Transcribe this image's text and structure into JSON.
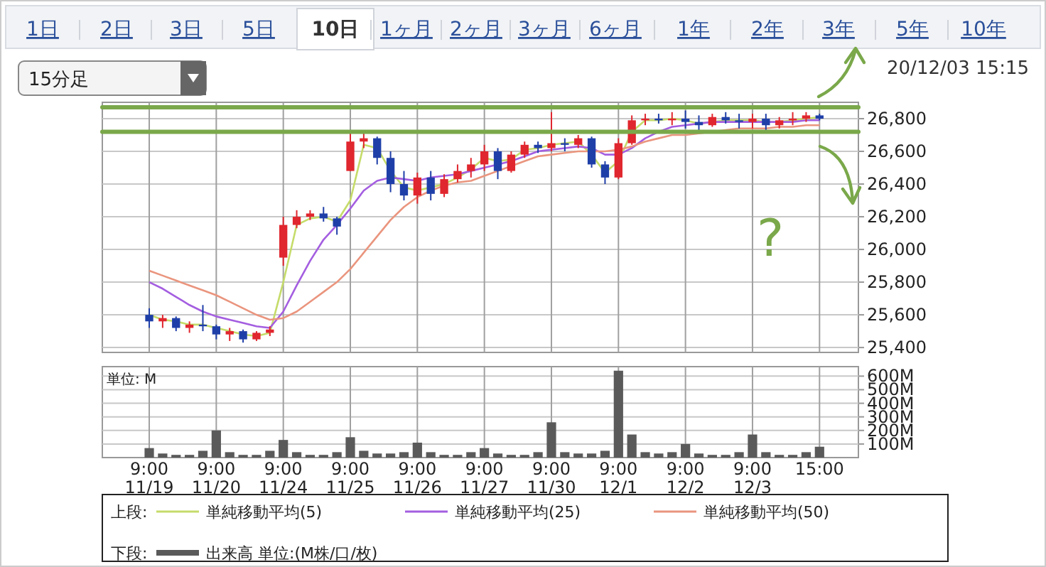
{
  "chart_data": [
    {
      "type": "candlestick",
      "categories": [
        null,
        null,
        null,
        null,
        null,
        null,
        null,
        null,
        null,
        null,
        null,
        null,
        null,
        null,
        null,
        null,
        null,
        null,
        null,
        null,
        null,
        null,
        null,
        null,
        null,
        null,
        null,
        null,
        null,
        null,
        null,
        null,
        null,
        null,
        null,
        null,
        null,
        null,
        null,
        null,
        null,
        null,
        null,
        null,
        null,
        null,
        null,
        null,
        null,
        null,
        null
      ],
      "ohlc": [
        [
          25600,
          25640,
          25520,
          25560
        ],
        [
          25560,
          25600,
          25520,
          25580
        ],
        [
          25580,
          25590,
          25500,
          25520
        ],
        [
          25520,
          25560,
          25490,
          25540
        ],
        [
          25540,
          25660,
          25500,
          25530
        ],
        [
          25530,
          25540,
          25450,
          25480
        ],
        [
          25480,
          25520,
          25440,
          25500
        ],
        [
          25500,
          25510,
          25430,
          25450
        ],
        [
          25450,
          25500,
          25440,
          25490
        ],
        [
          25490,
          25530,
          25470,
          25510
        ],
        [
          25950,
          26200,
          25900,
          26150
        ],
        [
          26150,
          26240,
          26130,
          26200
        ],
        [
          26200,
          26240,
          26180,
          26220
        ],
        [
          26220,
          26260,
          26170,
          26190
        ],
        [
          26190,
          26200,
          26090,
          26140
        ],
        [
          26480,
          26710,
          26480,
          26660
        ],
        [
          26660,
          26720,
          26620,
          26680
        ],
        [
          26680,
          26690,
          26520,
          26560
        ],
        [
          26560,
          26600,
          26350,
          26400
        ],
        [
          26400,
          26480,
          26300,
          26330
        ],
        [
          26330,
          26470,
          26280,
          26440
        ],
        [
          26440,
          26480,
          26300,
          26340
        ],
        [
          26340,
          26460,
          26320,
          26430
        ],
        [
          26430,
          26520,
          26410,
          26480
        ],
        [
          26480,
          26560,
          26440,
          26520
        ],
        [
          26520,
          26640,
          26480,
          26600
        ],
        [
          26600,
          26620,
          26430,
          26480
        ],
        [
          26480,
          26600,
          26470,
          26580
        ],
        [
          26580,
          26660,
          26560,
          26640
        ],
        [
          26640,
          26660,
          26590,
          26620
        ],
        [
          26620,
          26840,
          26600,
          26650
        ],
        [
          26650,
          26680,
          26600,
          26640
        ],
        [
          26640,
          26700,
          26620,
          26680
        ],
        [
          26680,
          26690,
          26500,
          26520
        ],
        [
          26520,
          26540,
          26400,
          26440
        ],
        [
          26440,
          26680,
          26430,
          26650
        ],
        [
          26650,
          26820,
          26640,
          26790
        ],
        [
          26790,
          26830,
          26760,
          26800
        ],
        [
          26800,
          26830,
          26770,
          26790
        ],
        [
          26790,
          26840,
          26760,
          26800
        ],
        [
          26800,
          26850,
          26740,
          26780
        ],
        [
          26780,
          26820,
          26720,
          26760
        ],
        [
          26760,
          26830,
          26750,
          26810
        ],
        [
          26810,
          26840,
          26770,
          26790
        ],
        [
          26790,
          26830,
          26740,
          26780
        ],
        [
          26780,
          26830,
          26740,
          26800
        ],
        [
          26800,
          26830,
          26730,
          26760
        ],
        [
          26760,
          26810,
          26740,
          26790
        ],
        [
          26790,
          26840,
          26760,
          26800
        ],
        [
          26800,
          26840,
          26780,
          26820
        ],
        [
          26820,
          26830,
          26790,
          26800
        ]
      ],
      "colors": [
        "#1f3fa8",
        "#e0262e",
        "#1f3fa8",
        "#e0262e",
        "#1f3fa8",
        "#1f3fa8",
        "#e0262e",
        "#1f3fa8",
        "#e0262e",
        "#e0262e",
        "#e0262e",
        "#e0262e",
        "#e0262e",
        "#1f3fa8",
        "#1f3fa8",
        "#e0262e",
        "#e0262e",
        "#1f3fa8",
        "#1f3fa8",
        "#1f3fa8",
        "#e0262e",
        "#1f3fa8",
        "#e0262e",
        "#e0262e",
        "#e0262e",
        "#e0262e",
        "#1f3fa8",
        "#e0262e",
        "#e0262e",
        "#1f3fa8",
        "#e0262e",
        "#1f3fa8",
        "#e0262e",
        "#1f3fa8",
        "#1f3fa8",
        "#e0262e",
        "#e0262e",
        "#e0262e",
        "#1f3fa8",
        "#e0262e",
        "#1f3fa8",
        "#1f3fa8",
        "#e0262e",
        "#1f3fa8",
        "#1f3fa8",
        "#e0262e",
        "#1f3fa8",
        "#e0262e",
        "#e0262e",
        "#e0262e",
        "#1f3fa8"
      ],
      "series": [
        {
          "type": "line",
          "name": "単純移動平均(5)",
          "color": "#c5dc6a",
          "values": [
            25600,
            25570,
            25560,
            25540,
            25540,
            25520,
            25500,
            25480,
            25470,
            25490,
            25800,
            26150,
            26190,
            26200,
            26170,
            26300,
            26640,
            26620,
            26480,
            26380,
            26360,
            26380,
            26400,
            26440,
            26490,
            26560,
            26540,
            26550,
            26610,
            26620,
            26640,
            26650,
            26660,
            26580,
            26470,
            26540,
            26720,
            26790,
            26790,
            26800,
            26790,
            26770,
            26780,
            26790,
            26790,
            26790,
            26780,
            26780,
            26790,
            26800,
            26810
          ]
        },
        {
          "type": "line",
          "name": "単純移動平均(25)",
          "color": "#a45ee0",
          "values": [
            25800,
            25760,
            25710,
            25660,
            25620,
            25590,
            25570,
            25550,
            25530,
            25520,
            25620,
            25780,
            25930,
            26060,
            26150,
            26250,
            26360,
            26420,
            26440,
            26430,
            26420,
            26440,
            26450,
            26460,
            26480,
            26500,
            26520,
            26540,
            26570,
            26600,
            26610,
            26620,
            26630,
            26620,
            26580,
            26580,
            26620,
            26680,
            26720,
            26750,
            26760,
            26770,
            26780,
            26780,
            26780,
            26780,
            26780,
            26780,
            26780,
            26790,
            26790
          ]
        },
        {
          "type": "line",
          "name": "単純移動平均(50)",
          "color": "#ea957e",
          "values": [
            25870,
            25840,
            25810,
            25780,
            25750,
            25720,
            25680,
            25640,
            25600,
            25570,
            25580,
            25620,
            25680,
            25740,
            25800,
            25880,
            25980,
            26080,
            26180,
            26260,
            26320,
            26360,
            26390,
            26410,
            26420,
            26450,
            26480,
            26510,
            26540,
            26570,
            26580,
            26590,
            26600,
            26600,
            26600,
            26610,
            26630,
            26660,
            26680,
            26700,
            26700,
            26710,
            26720,
            26730,
            26740,
            26740,
            26740,
            26750,
            26750,
            26760,
            26760
          ]
        }
      ],
      "ylim": [
        25370,
        26900
      ],
      "yticks": [
        {
          "value": 25400,
          "label": "25,400"
        },
        {
          "value": 25600,
          "label": "25,600"
        },
        {
          "value": 25800,
          "label": "25,800"
        },
        {
          "value": 26000,
          "label": "26,000"
        },
        {
          "value": 26200,
          "label": "26,200"
        },
        {
          "value": 26400,
          "label": "26,400"
        },
        {
          "value": 26600,
          "label": "26,600"
        },
        {
          "value": 26800,
          "label": "26,800"
        }
      ],
      "grid": true,
      "tick_labels": "y",
      "legend": "bottom",
      "legend_title": "上段:",
      "ref_lines": [
        {
          "axis": "y",
          "value": 26870,
          "color": "#7aa84a"
        },
        {
          "axis": "y",
          "value": 26720,
          "color": "#7aa84a"
        }
      ],
      "annotations": [
        "1日",
        "2日",
        "3日",
        "5日",
        "10日",
        "1ヶ月",
        "2ヶ月",
        "3ヶ月",
        "6ヶ月",
        "1年",
        "2年",
        "3年",
        "5年",
        "10年",
        "15分足",
        "20/12/03 15:15",
        "?"
      ]
    },
    {
      "type": "bar",
      "categories": [
        "9:00\n11/19",
        null,
        null,
        null,
        null,
        "9:00\n11/20",
        null,
        null,
        null,
        null,
        "9:00\n11/24",
        null,
        null,
        null,
        null,
        "9:00\n11/25",
        null,
        null,
        null,
        null,
        "9:00\n11/26",
        null,
        null,
        null,
        null,
        "9:00\n11/27",
        null,
        null,
        null,
        null,
        "9:00\n11/30",
        null,
        null,
        null,
        null,
        "9:00\n12/1",
        null,
        null,
        null,
        null,
        "9:00\n12/2",
        null,
        null,
        null,
        null,
        "9:00\n12/3",
        null,
        null,
        null,
        null,
        "15:00"
      ],
      "series": [
        {
          "name": "出来高 単位:(M株/口/枚)",
          "color": "#5a5a5a",
          "values": [
            70,
            30,
            20,
            20,
            50,
            200,
            40,
            20,
            20,
            50,
            130,
            40,
            20,
            20,
            40,
            150,
            50,
            30,
            30,
            40,
            110,
            40,
            20,
            20,
            40,
            70,
            30,
            20,
            20,
            40,
            260,
            40,
            30,
            30,
            50,
            640,
            170,
            40,
            30,
            40,
            100,
            30,
            20,
            20,
            40,
            170,
            40,
            20,
            20,
            40,
            80
          ]
        }
      ],
      "ylim": [
        0,
        670
      ],
      "yticks": [
        {
          "value": 100,
          "label": "100M"
        },
        {
          "value": 200,
          "label": "200M"
        },
        {
          "value": 300,
          "label": "300M"
        },
        {
          "value": 400,
          "label": "400M"
        },
        {
          "value": 500,
          "label": "500M"
        },
        {
          "value": 600,
          "label": "600M"
        }
      ],
      "grid": true,
      "legend": "bottom",
      "legend_title": "下段:",
      "annotations": [
        "単位: M"
      ]
    }
  ]
}
